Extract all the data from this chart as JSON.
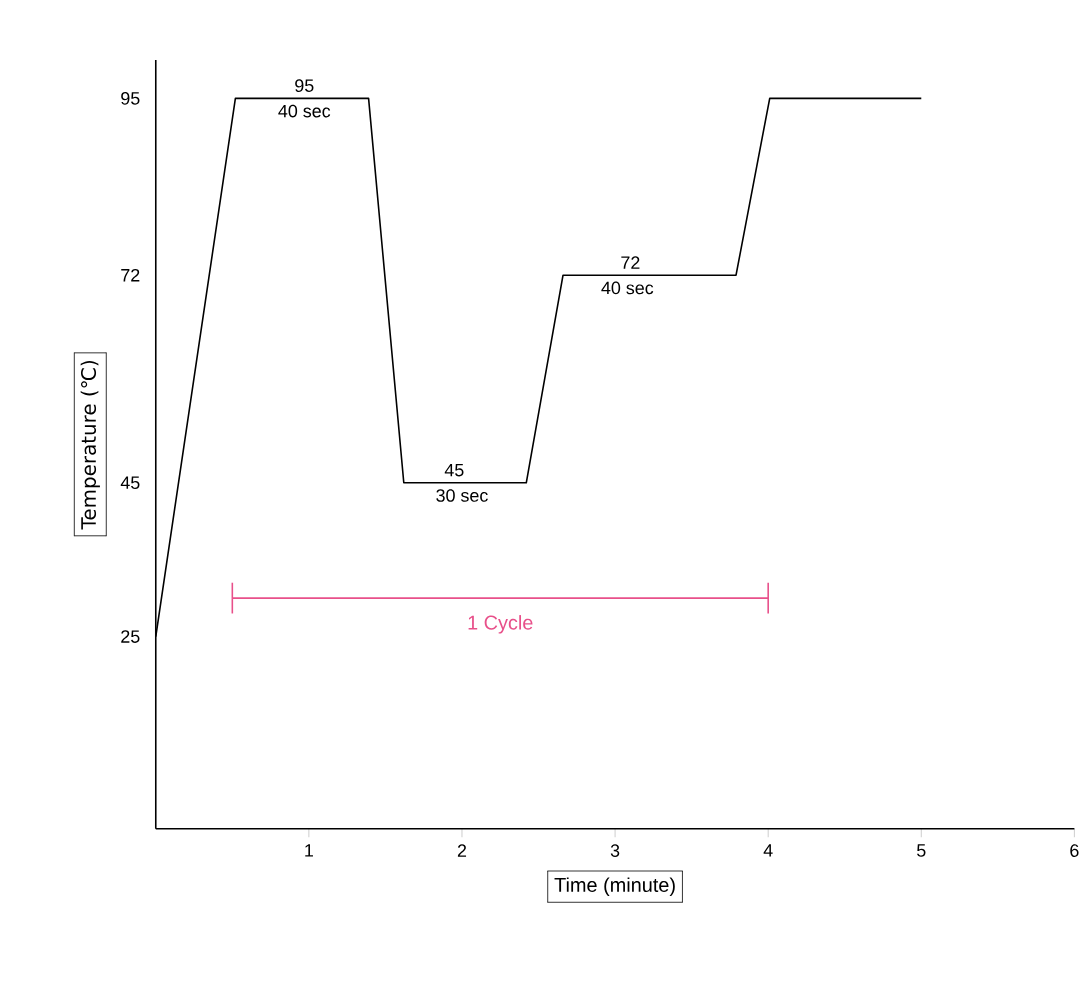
{
  "chart_data": {
    "type": "line",
    "xlabel": "Time (minute)",
    "ylabel": "Temperature (℃)",
    "series": [
      {
        "color": "#000000",
        "x": [
          0,
          0.52,
          1.39,
          1.62,
          2.42,
          2.66,
          3.79,
          4.01,
          5.0
        ],
        "values": [
          25,
          95,
          95,
          45,
          45,
          72,
          72,
          95,
          95
        ]
      },
      {
        "name": "1 Cycle",
        "color": "#e8508a",
        "x": [
          0.5,
          4
        ],
        "values": [
          30,
          30
        ],
        "errors": [
          2,
          2
        ]
      }
    ],
    "xlim": [
      0,
      6
    ],
    "xticks": [
      1,
      2,
      3,
      4,
      5,
      6
    ],
    "ylim": [
      0,
      100
    ],
    "yticks": [
      25,
      45,
      72,
      95
    ],
    "annotations": [
      {
        "text": "95",
        "x": 0.97,
        "y": 95
      },
      {
        "text": "40 sec",
        "x": 0.97,
        "y": 95
      },
      {
        "text": "45",
        "x": 1.95,
        "y": 45
      },
      {
        "text": "30 sec",
        "x": 2.0,
        "y": 45
      },
      {
        "text": "72",
        "x": 3.1,
        "y": 72
      },
      {
        "text": "40 sec",
        "x": 3.08,
        "y": 72
      }
    ]
  }
}
